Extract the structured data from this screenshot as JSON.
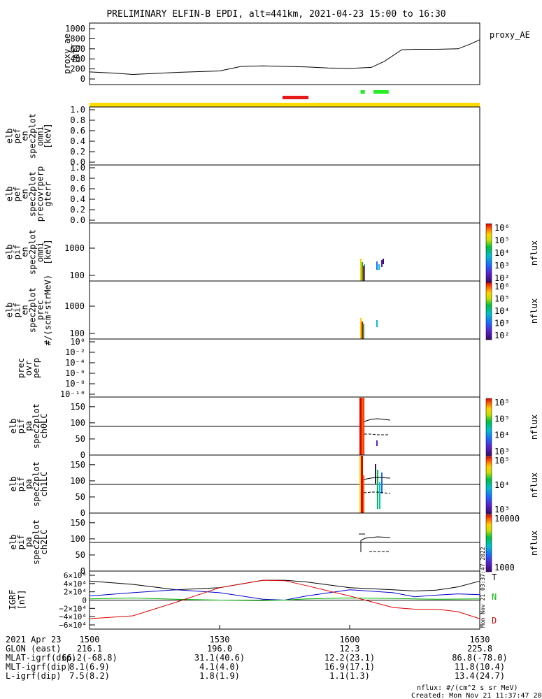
{
  "title": "PRELIMINARY ELFIN-B EPDI, alt=441km, 2021-04-23 15:00 to 16:30",
  "colors": {
    "orbit_bar": "#ffdd00",
    "seg_red": "#e61a1a",
    "seg_green": "#22ee22",
    "bx": "#0000cc",
    "by": "#00bb00",
    "bz": "#dd0000",
    "bt": "#000000"
  },
  "chart_data": [
    {
      "id": "proxy_ae",
      "type": "line",
      "ylabel": "proxy_ae [nT]",
      "legend": "proxy_AE",
      "yticks": [
        "1000",
        "800",
        "600",
        "400",
        "200",
        "0"
      ],
      "ylim": [
        0,
        1000
      ],
      "x": [
        0,
        5,
        10,
        20,
        30,
        35,
        40,
        50,
        55,
        60,
        65,
        68,
        72,
        75,
        80,
        85,
        88,
        90
      ],
      "values": [
        140,
        120,
        90,
        130,
        160,
        250,
        260,
        240,
        220,
        210,
        230,
        350,
        580,
        590,
        590,
        600,
        700,
        780
      ]
    },
    {
      "id": "segments",
      "type": "bar",
      "red": [
        [
          44.5,
          50.5
        ]
      ],
      "green": [
        [
          62.5,
          63.5
        ],
        [
          65.5,
          69
        ]
      ]
    },
    {
      "id": "pef_omni",
      "type": "heatmap",
      "ylabel": [
        "elb",
        "pef",
        "en",
        "spec2plot",
        "omni",
        "[keV]"
      ],
      "yticks": [
        "1.0",
        "0.8",
        "0.6",
        "0.4",
        "0.2",
        "0.0"
      ],
      "ylim": [
        0,
        1
      ]
    },
    {
      "id": "pef_prec",
      "type": "heatmap",
      "ylabel": [
        "elb",
        "pef",
        "en",
        "spec2plot",
        "precovrperp",
        "gterr"
      ],
      "yticks": [
        "1.0",
        "0.8",
        "0.6",
        "0.4",
        "0.2",
        "0.0"
      ],
      "ylim": [
        0,
        1
      ]
    },
    {
      "id": "pif_omni",
      "type": "heatmap",
      "ylabel": [
        "elb",
        "pif",
        "en",
        "spec2plot",
        "omni",
        "[keV]"
      ],
      "yticks": [
        "1000",
        "100"
      ],
      "colorbar": {
        "label": "nflux",
        "ticks": [
          "10⁶",
          "10⁵",
          "10⁴",
          "10³",
          "10²"
        ]
      }
    },
    {
      "id": "pif_prec",
      "type": "heatmap",
      "ylabel": [
        "elb",
        "pif",
        "en",
        "spec2plot",
        "prec",
        "#/(scm²strMeV)"
      ],
      "yticks": [
        "1000",
        "100"
      ],
      "colorbar": {
        "label": "nflux",
        "ticks": [
          "10⁶",
          "10⁵",
          "10⁴",
          "10³",
          "10²"
        ]
      }
    },
    {
      "id": "prec_ovr_perp",
      "type": "line",
      "ylabel": [
        "prec",
        "ovr",
        "perp"
      ],
      "yticks": [
        "10⁰",
        "10⁻²",
        "10⁻⁴",
        "10⁻⁶",
        "10⁻⁸",
        "10⁻¹⁰"
      ]
    },
    {
      "id": "pa_ch0",
      "type": "heatmap",
      "ylabel": [
        "elb",
        "pif",
        "pa",
        "spec2plot",
        "ch0LC"
      ],
      "yticks": [
        "150",
        "100",
        "50",
        "0"
      ],
      "ylim": [
        0,
        180
      ],
      "colorbar": {
        "label": "nflux",
        "ticks": [
          "10⁵",
          "10⁵",
          "10⁴",
          "10³"
        ]
      }
    },
    {
      "id": "pa_ch1",
      "type": "heatmap",
      "ylabel": [
        "elb",
        "pif",
        "pa",
        "spec2plot",
        "ch1LC"
      ],
      "yticks": [
        "150",
        "100",
        "50",
        "0"
      ],
      "ylim": [
        0,
        180
      ],
      "colorbar": {
        "label": "nflux",
        "ticks": [
          "10⁵",
          "10⁴",
          "10³"
        ]
      }
    },
    {
      "id": "pa_ch2",
      "type": "heatmap",
      "ylabel": [
        "elb",
        "pif",
        "pa",
        "spec2plot",
        "ch2LC"
      ],
      "yticks": [
        "150",
        "100",
        "50",
        "0"
      ],
      "ylim": [
        0,
        180
      ],
      "colorbar": {
        "label": "nflux",
        "ticks": [
          "10000",
          "1000"
        ]
      }
    },
    {
      "id": "igrf",
      "type": "line",
      "ylabel": "IGRF [nT]",
      "yticks": [
        "6×10⁴",
        "4×10⁴",
        "2×10⁴",
        "0",
        "−2×10⁴",
        "−4×10⁴",
        "−6×10⁴"
      ],
      "ylim": [
        -60000,
        60000
      ],
      "legend": [
        "T",
        "N",
        "D"
      ],
      "x": [
        0,
        10,
        20,
        30,
        40,
        45,
        50,
        60,
        70,
        75,
        80,
        85,
        90
      ],
      "series": [
        {
          "key": "T",
          "values": [
            46000,
            38000,
            25000,
            30000,
            48000,
            48000,
            44000,
            30000,
            25000,
            22000,
            24000,
            32000,
            46000
          ]
        },
        {
          "key": "N",
          "values": [
            10000,
            18000,
            25000,
            18000,
            2000,
            0,
            10000,
            25000,
            18000,
            8000,
            12000,
            15000,
            13000
          ]
        },
        {
          "key": "V",
          "values": [
            3000,
            5000,
            2000,
            0,
            -1000,
            0,
            3000,
            5000,
            4000,
            3000,
            2000,
            2500,
            3000
          ]
        },
        {
          "key": "D",
          "values": [
            -45000,
            -38000,
            -5000,
            30000,
            48000,
            47000,
            35000,
            10000,
            -18000,
            -22000,
            -22000,
            -28000,
            -45000
          ]
        }
      ]
    }
  ],
  "xaxis": {
    "date": "2021 Apr 23",
    "ticks": [
      "1500",
      "1530",
      "1600",
      "1630"
    ],
    "tick_minutes": [
      0,
      30,
      60,
      90
    ],
    "rows": [
      {
        "label": "GLON (east)",
        "values": [
          "216.1",
          "196.0",
          "12.3",
          "225.8"
        ]
      },
      {
        "label": "MLAT-igrf(dip)",
        "values": [
          "66.2(-68.8)",
          "31.1(40.6)",
          "12.2(23.1)",
          "86.8(-78.0)"
        ]
      },
      {
        "label": "MLT-igrf(dip)",
        "values": [
          "8.1(6.9)",
          "4.1(4.0)",
          "16.9(17.1)",
          "11.8(10.4)"
        ]
      },
      {
        "label": "L-igrf(dip)",
        "values": [
          "7.5(8.2)",
          "1.8(1.9)",
          "1.1(1.3)",
          "13.4(24.7)"
        ]
      }
    ]
  },
  "side_note": "Mon Nov 21 03:37:47 2022",
  "footer": {
    "units": "nflux: #/(cm^2 s sr MeV)",
    "created": "Created: Mon Nov 21 11:37:47 2022"
  }
}
